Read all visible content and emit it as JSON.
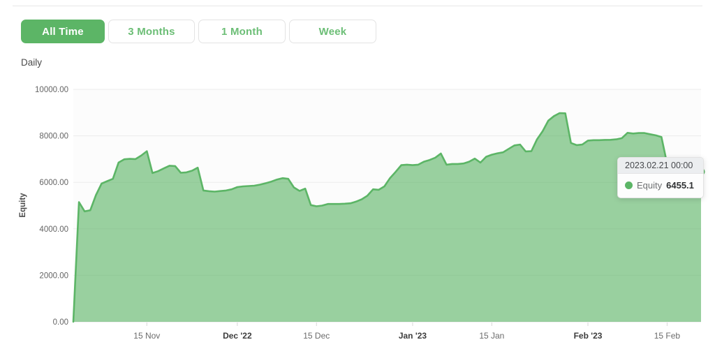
{
  "toolbar": {
    "buttons": [
      {
        "label": "All Time",
        "active": true
      },
      {
        "label": "3 Months",
        "active": false
      },
      {
        "label": "1 Month",
        "active": false
      },
      {
        "label": "Week",
        "active": false
      }
    ],
    "frequency_label": "Daily"
  },
  "colors": {
    "accent_green": "#5cb566",
    "area_fill": "#8cca92",
    "grid_line": "#ebebeb",
    "axis_text": "#646464",
    "axis_text_bold": "#3c3c3c"
  },
  "chart_data": {
    "type": "area",
    "series_name": "Equity",
    "ylabel": "Equity",
    "ylim": [
      0,
      10000
    ],
    "grid": true,
    "x_days_total": 111,
    "yticks": [
      {
        "label": "0.00",
        "value": 0
      },
      {
        "label": "2000.00",
        "value": 2000
      },
      {
        "label": "4000.00",
        "value": 4000
      },
      {
        "label": "6000.00",
        "value": 6000
      },
      {
        "label": "8000.00",
        "value": 8000
      },
      {
        "label": "10000.00",
        "value": 10000
      }
    ],
    "xticks": [
      {
        "label": "15 Nov",
        "day": 13,
        "bold": false
      },
      {
        "label": "Dec '22",
        "day": 29,
        "bold": true
      },
      {
        "label": "15 Dec",
        "day": 43,
        "bold": false
      },
      {
        "label": "Jan '23",
        "day": 60,
        "bold": true
      },
      {
        "label": "15 Jan",
        "day": 74,
        "bold": false
      },
      {
        "label": "Feb '23",
        "day": 91,
        "bold": true
      },
      {
        "label": "15 Feb",
        "day": 105,
        "bold": false
      }
    ],
    "values": [
      0,
      5150,
      4750,
      4800,
      5450,
      5950,
      6050,
      6150,
      6850,
      6990,
      7010,
      7000,
      7150,
      7340,
      6400,
      6480,
      6600,
      6715,
      6700,
      6410,
      6430,
      6500,
      6630,
      5650,
      5620,
      5600,
      5625,
      5650,
      5700,
      5795,
      5825,
      5840,
      5855,
      5900,
      5960,
      6030,
      6120,
      6180,
      6150,
      5780,
      5630,
      5730,
      5020,
      4970,
      5000,
      5070,
      5070,
      5070,
      5080,
      5100,
      5170,
      5270,
      5425,
      5700,
      5680,
      5825,
      6180,
      6450,
      6740,
      6760,
      6740,
      6760,
      6890,
      6960,
      7060,
      7240,
      6760,
      6790,
      6790,
      6810,
      6890,
      7020,
      6850,
      7100,
      7190,
      7250,
      7290,
      7440,
      7590,
      7625,
      7330,
      7340,
      7850,
      8200,
      8655,
      8850,
      8980,
      8970,
      7695,
      7600,
      7625,
      7795,
      7815,
      7815,
      7825,
      7830,
      7850,
      7900,
      8130,
      8100,
      8120,
      8120,
      8070,
      8020,
      7950,
      6800,
      6600,
      6550,
      6500,
      6480,
      6470,
      6455.1
    ],
    "colors": {
      "line": "#5cb566",
      "fill": "rgba(92,181,102,0.62)"
    },
    "tooltip": {
      "date": "2023.02.21 00:00",
      "series": "Equity",
      "value": "6455.1",
      "day": 111
    }
  }
}
